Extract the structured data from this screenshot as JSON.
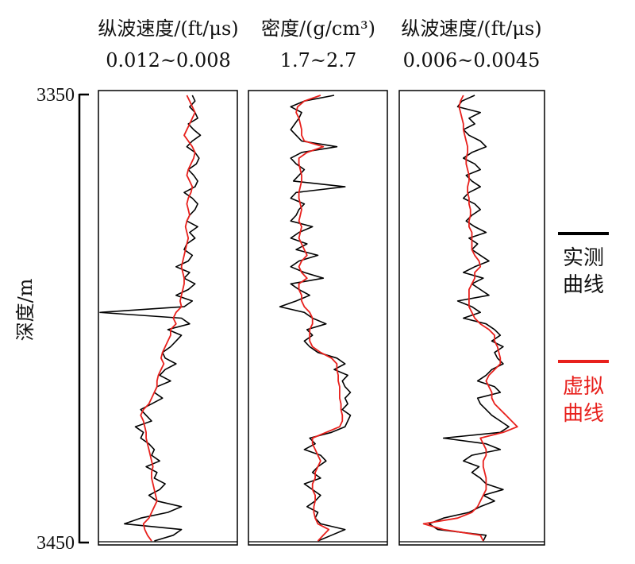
{
  "chart_data": {
    "type": "line",
    "y_label": "深度/m",
    "y_axis": {
      "top_label": "3350",
      "bottom_label": "3450",
      "range": [
        3350,
        3450
      ]
    },
    "legend": {
      "placement": "right",
      "items": [
        {
          "line1": "实测",
          "line2": "曲线",
          "color": "#000000"
        },
        {
          "line1": "虚拟",
          "line2": "曲线",
          "color": "#e8201c"
        }
      ]
    },
    "tracks": [
      {
        "title": "纵波速度/(ft/μs)",
        "range_label": "0.012~0.008",
        "measured_x": [
          0.68,
          0.7,
          0.66,
          0.7,
          0.72,
          0.65,
          0.69,
          0.74,
          0.68,
          0.64,
          0.7,
          0.73,
          0.71,
          0.65,
          0.69,
          0.72,
          0.7,
          0.62,
          0.68,
          0.72,
          0.7,
          0.66,
          0.64,
          0.72,
          0.66,
          0.7,
          0.64,
          0.62,
          0.68,
          0.65,
          0.56,
          0.66,
          0.62,
          0.7,
          0.65,
          0.56,
          0.68,
          0.62,
          0.0,
          0.6,
          0.66,
          0.5,
          0.6,
          0.56,
          0.52,
          0.46,
          0.48,
          0.56,
          0.48,
          0.44,
          0.52,
          0.42,
          0.4,
          0.46,
          0.38,
          0.3,
          0.34,
          0.38,
          0.26,
          0.32,
          0.3,
          0.36,
          0.4,
          0.38,
          0.44,
          0.34,
          0.42,
          0.4,
          0.48,
          0.44,
          0.36,
          0.42,
          0.6,
          0.5,
          0.3,
          0.18,
          0.6,
          0.54,
          0.4
        ],
        "virtual_x": [
          0.64,
          0.66,
          0.68,
          0.7,
          0.68,
          0.66,
          0.64,
          0.62,
          0.65,
          0.68,
          0.7,
          0.69,
          0.67,
          0.65,
          0.64,
          0.66,
          0.68,
          0.67,
          0.65,
          0.64,
          0.65,
          0.66,
          0.64,
          0.63,
          0.64,
          0.65,
          0.64,
          0.63,
          0.62,
          0.61,
          0.6,
          0.61,
          0.62,
          0.62,
          0.61,
          0.6,
          0.59,
          0.6,
          0.56,
          0.54,
          0.56,
          0.52,
          0.52,
          0.5,
          0.48,
          0.46,
          0.45,
          0.47,
          0.45,
          0.43,
          0.42,
          0.42,
          0.4,
          0.38,
          0.36,
          0.32,
          0.3,
          0.32,
          0.33,
          0.34,
          0.34,
          0.35,
          0.36,
          0.37,
          0.38,
          0.39,
          0.38,
          0.38,
          0.39,
          0.4,
          0.41,
          0.42,
          0.4,
          0.38,
          0.36,
          0.32,
          0.33,
          0.35,
          0.38
        ]
      },
      {
        "title": "密度/(g/cm³)",
        "range_label": "1.7~2.7",
        "measured_x": [
          0.62,
          0.4,
          0.3,
          0.38,
          0.36,
          0.33,
          0.3,
          0.34,
          0.38,
          0.64,
          0.38,
          0.3,
          0.34,
          0.4,
          0.36,
          0.32,
          0.7,
          0.34,
          0.3,
          0.4,
          0.36,
          0.34,
          0.3,
          0.46,
          0.36,
          0.3,
          0.42,
          0.34,
          0.5,
          0.36,
          0.3,
          0.4,
          0.54,
          0.3,
          0.36,
          0.44,
          0.34,
          0.22,
          0.4,
          0.46,
          0.56,
          0.42,
          0.46,
          0.4,
          0.44,
          0.5,
          0.64,
          0.7,
          0.62,
          0.72,
          0.68,
          0.7,
          0.74,
          0.7,
          0.72,
          0.68,
          0.74,
          0.72,
          0.7,
          0.6,
          0.44,
          0.48,
          0.4,
          0.52,
          0.56,
          0.5,
          0.46,
          0.52,
          0.4,
          0.46,
          0.52,
          0.48,
          0.42,
          0.5,
          0.48,
          0.52,
          0.7,
          0.6,
          0.5
        ],
        "virtual_x": [
          0.52,
          0.4,
          0.35,
          0.34,
          0.36,
          0.37,
          0.38,
          0.38,
          0.4,
          0.54,
          0.42,
          0.36,
          0.36,
          0.37,
          0.38,
          0.38,
          0.37,
          0.36,
          0.36,
          0.37,
          0.38,
          0.37,
          0.36,
          0.38,
          0.37,
          0.36,
          0.38,
          0.4,
          0.42,
          0.38,
          0.36,
          0.38,
          0.42,
          0.36,
          0.36,
          0.38,
          0.38,
          0.4,
          0.44,
          0.46,
          0.46,
          0.44,
          0.44,
          0.44,
          0.46,
          0.52,
          0.6,
          0.64,
          0.64,
          0.65,
          0.65,
          0.66,
          0.66,
          0.66,
          0.67,
          0.67,
          0.68,
          0.68,
          0.66,
          0.56,
          0.46,
          0.46,
          0.48,
          0.5,
          0.52,
          0.5,
          0.48,
          0.48,
          0.46,
          0.46,
          0.48,
          0.48,
          0.47,
          0.47,
          0.48,
          0.5,
          0.58,
          0.54,
          0.5
        ]
      },
      {
        "title": "纵波速度/(ft/μs)",
        "range_label": "0.006~0.0045",
        "measured_x": [
          0.52,
          0.43,
          0.4,
          0.56,
          0.48,
          0.52,
          0.44,
          0.48,
          0.56,
          0.6,
          0.5,
          0.44,
          0.52,
          0.56,
          0.46,
          0.5,
          0.56,
          0.48,
          0.44,
          0.52,
          0.56,
          0.5,
          0.46,
          0.52,
          0.6,
          0.48,
          0.54,
          0.5,
          0.56,
          0.62,
          0.52,
          0.44,
          0.58,
          0.5,
          0.56,
          0.62,
          0.4,
          0.5,
          0.56,
          0.44,
          0.6,
          0.66,
          0.7,
          0.64,
          0.72,
          0.66,
          0.68,
          0.72,
          0.64,
          0.6,
          0.54,
          0.66,
          0.7,
          0.54,
          0.56,
          0.6,
          0.64,
          0.7,
          0.76,
          0.7,
          0.3,
          0.6,
          0.7,
          0.5,
          0.44,
          0.55,
          0.5,
          0.56,
          0.6,
          0.72,
          0.58,
          0.66,
          0.56,
          0.48,
          0.3,
          0.2,
          0.26,
          0.6,
          0.58
        ],
        "virtual_x": [
          0.44,
          0.42,
          0.41,
          0.42,
          0.43,
          0.44,
          0.44,
          0.45,
          0.46,
          0.47,
          0.47,
          0.46,
          0.46,
          0.47,
          0.48,
          0.48,
          0.47,
          0.47,
          0.48,
          0.48,
          0.49,
          0.49,
          0.48,
          0.48,
          0.5,
          0.5,
          0.5,
          0.5,
          0.52,
          0.55,
          0.56,
          0.52,
          0.52,
          0.5,
          0.48,
          0.48,
          0.48,
          0.48,
          0.5,
          0.52,
          0.56,
          0.62,
          0.66,
          0.66,
          0.68,
          0.69,
          0.7,
          0.7,
          0.66,
          0.62,
          0.6,
          0.62,
          0.64,
          0.64,
          0.66,
          0.7,
          0.74,
          0.78,
          0.82,
          0.72,
          0.56,
          0.58,
          0.6,
          0.6,
          0.58,
          0.58,
          0.59,
          0.6,
          0.6,
          0.6,
          0.58,
          0.56,
          0.54,
          0.5,
          0.4,
          0.16,
          0.3,
          0.56,
          0.58
        ]
      }
    ]
  }
}
